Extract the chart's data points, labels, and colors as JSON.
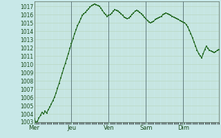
{
  "bg_color": "#c8e8e8",
  "line_color": "#2a6e2a",
  "marker_color": "#2a6e2a",
  "grid_major_color": "#b8d8c0",
  "grid_minor_color": "#c0dcc8",
  "vline_color": "#607878",
  "ylabel_color": "#1a4a1a",
  "xlabel_color": "#1a4a1a",
  "ylim_min": 1003,
  "ylim_max": 1017.6,
  "yticks": [
    1003,
    1004,
    1005,
    1006,
    1007,
    1008,
    1009,
    1010,
    1011,
    1012,
    1013,
    1014,
    1015,
    1016,
    1017
  ],
  "day_labels": [
    "Mer",
    "Jeu",
    "Ven",
    "Sam",
    "Dim"
  ],
  "day_positions": [
    0,
    24,
    48,
    72,
    96
  ],
  "vline_positions": [
    24,
    48,
    72,
    96
  ],
  "total_hours": 120,
  "pressure_values": [
    1003.4,
    1003.0,
    1003.1,
    1003.5,
    1003.8,
    1004.2,
    1004.0,
    1004.3,
    1004.1,
    1004.5,
    1004.8,
    1005.2,
    1005.6,
    1006.0,
    1006.5,
    1007.1,
    1007.7,
    1008.3,
    1008.9,
    1009.5,
    1010.1,
    1010.7,
    1011.3,
    1011.9,
    1012.5,
    1013.1,
    1013.7,
    1014.2,
    1014.7,
    1015.1,
    1015.5,
    1015.9,
    1016.1,
    1016.3,
    1016.5,
    1016.7,
    1016.9,
    1017.1,
    1017.2,
    1017.3,
    1017.2,
    1017.1,
    1017.0,
    1016.8,
    1016.5,
    1016.2,
    1016.0,
    1015.8,
    1015.9,
    1016.0,
    1016.2,
    1016.4,
    1016.6,
    1016.5,
    1016.4,
    1016.3,
    1016.1,
    1015.9,
    1015.7,
    1015.6,
    1015.5,
    1015.6,
    1015.8,
    1016.0,
    1016.2,
    1016.4,
    1016.5,
    1016.4,
    1016.3,
    1016.1,
    1015.9,
    1015.7,
    1015.5,
    1015.3,
    1015.1,
    1015.0,
    1015.1,
    1015.2,
    1015.4,
    1015.5,
    1015.6,
    1015.7,
    1015.8,
    1016.0,
    1016.1,
    1016.2,
    1016.1,
    1016.0,
    1015.9,
    1015.8,
    1015.7,
    1015.6,
    1015.5,
    1015.4,
    1015.3,
    1015.2,
    1015.1,
    1015.0,
    1014.8,
    1014.5,
    1014.1,
    1013.7,
    1013.2,
    1012.7,
    1012.2,
    1011.7,
    1011.3,
    1011.0,
    1010.8,
    1011.3,
    1011.8,
    1012.2,
    1011.9,
    1011.7,
    1011.6,
    1011.5,
    1011.4,
    1011.5,
    1011.7,
    1011.8
  ]
}
